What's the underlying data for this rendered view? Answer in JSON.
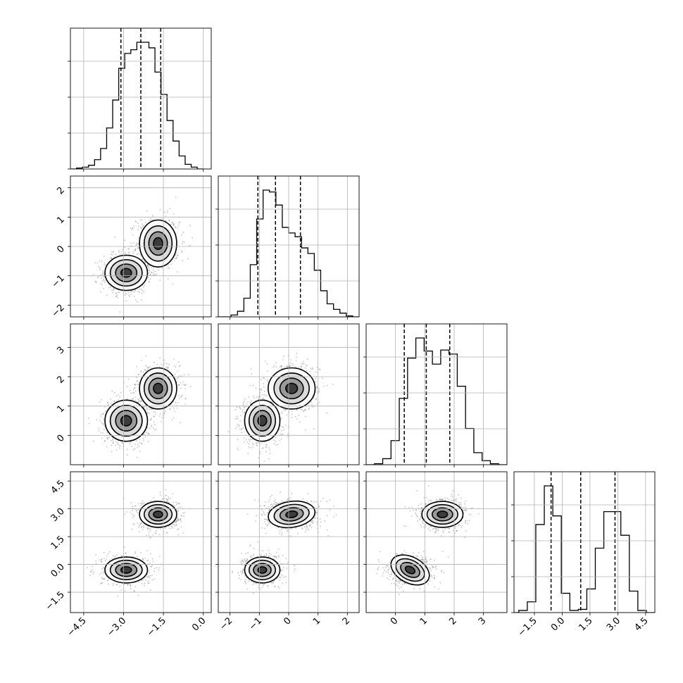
{
  "chart_data": {
    "type": "corner",
    "parameters": 4,
    "histogram": {
      "style": "step",
      "quantile_lines": [
        [
          -3.1,
          -2.35,
          -1.6
        ],
        [
          -1.05,
          -0.45,
          0.4
        ],
        [
          0.3,
          1.05,
          1.85
        ],
        [
          -0.6,
          1.0,
          2.85
        ]
      ],
      "bins": [
        {
          "range": [
            -5.0,
            0.0
          ],
          "counts": [
            0,
            1,
            2,
            4,
            10,
            22,
            44,
            74,
            108,
            124,
            128,
            136,
            136,
            130,
            104,
            80,
            52,
            30,
            14,
            5,
            2,
            0
          ]
        },
        {
          "range": [
            -2.4,
            2.4
          ],
          "counts": [
            0,
            0,
            2,
            6,
            20,
            56,
            105,
            136,
            134,
            120,
            96,
            90,
            86,
            74,
            68,
            50,
            28,
            14,
            8,
            4,
            1,
            0
          ]
        },
        {
          "range": [
            -1.0,
            3.8
          ],
          "counts": [
            0,
            1,
            6,
            24,
            66,
            106,
            126,
            113,
            100,
            114,
            110,
            78,
            36,
            12,
            4,
            1,
            0
          ]
        },
        {
          "range": [
            -2.8,
            5.0
          ],
          "counts": [
            0,
            2,
            10,
            82,
            118,
            90,
            18,
            2,
            3,
            22,
            60,
            94,
            94,
            72,
            20,
            2,
            0
          ]
        }
      ]
    },
    "axes": {
      "p0": {
        "ticks": [
          -4.5,
          -3.0,
          -1.5,
          0.0
        ],
        "labels": [
          "−4.5",
          "−3.0",
          "−1.5",
          "0.0"
        ],
        "range": [
          -5.0,
          0.3
        ]
      },
      "p1": {
        "ticks": [
          -2,
          -1,
          0,
          1,
          2
        ],
        "labels": [
          "−2",
          "−1",
          "0",
          "1",
          "2"
        ],
        "range": [
          -2.4,
          2.4
        ]
      },
      "p2": {
        "ticks": [
          0,
          1,
          2,
          3
        ],
        "labels": [
          "0",
          "1",
          "2",
          "3"
        ],
        "range": [
          -1.0,
          3.8
        ]
      },
      "p3": {
        "ticks": [
          -1.5,
          0.0,
          1.5,
          3.0,
          4.5
        ],
        "labels": [
          "−1.5",
          "0.0",
          "1.5",
          "3.0",
          "4.5"
        ],
        "range": [
          -2.6,
          5.0
        ]
      }
    },
    "modes": [
      {
        "weight": 0.5,
        "mean": [
          -2.9,
          -0.9,
          0.5,
          -0.3
        ],
        "sd": [
          0.4,
          0.3,
          0.35,
          0.35
        ]
      },
      {
        "weight": 0.5,
        "mean": [
          -1.7,
          0.1,
          1.6,
          2.7
        ],
        "sd": [
          0.35,
          0.4,
          0.35,
          0.35
        ]
      }
    ],
    "contour_levels_sigma": [
      0.5,
      1.0,
      1.5,
      2.0
    ],
    "grid": true,
    "colors": {
      "hist": "#000000",
      "points": "#555555",
      "shade": "#000000"
    }
  }
}
